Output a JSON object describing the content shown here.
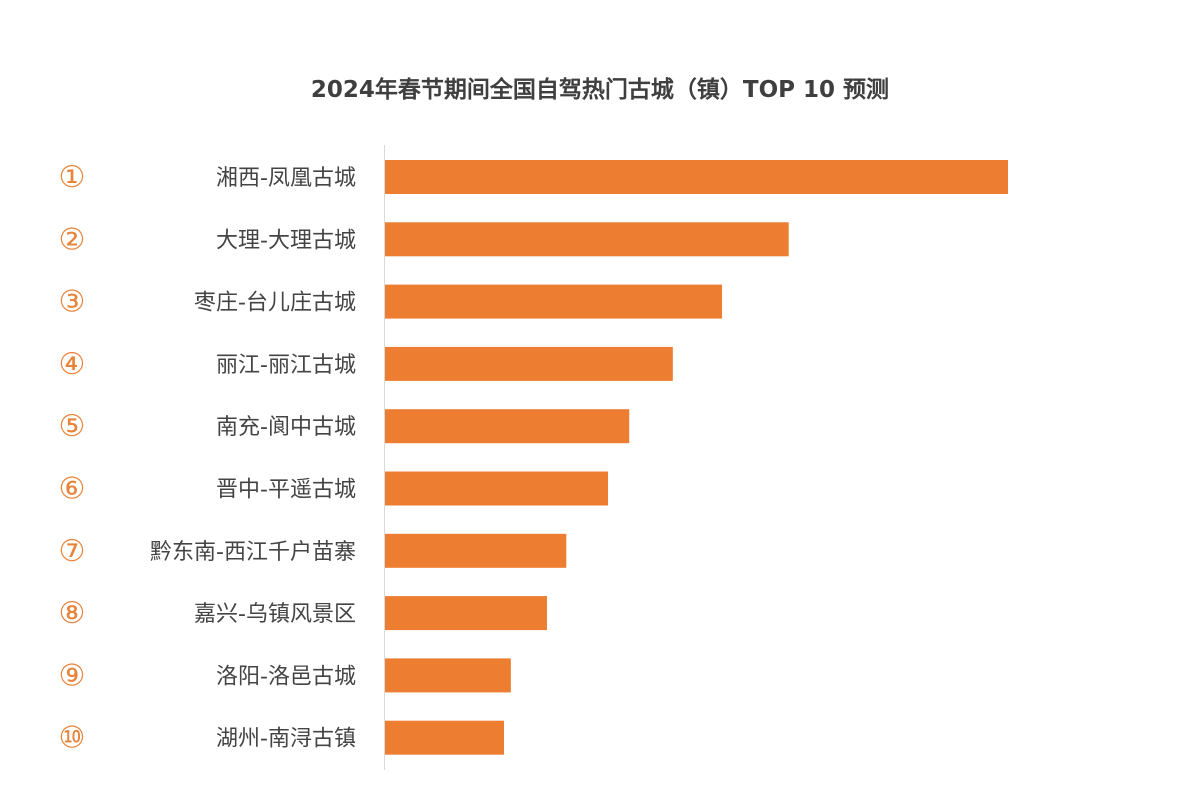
{
  "chart_data": {
    "type": "bar",
    "orientation": "horizontal",
    "title": "2024年春节期间全国自驾热门古城（镇）TOP 10 预测",
    "ranks": [
      "①",
      "②",
      "③",
      "④",
      "⑤",
      "⑥",
      "⑦",
      "⑧",
      "⑨",
      "⑩"
    ],
    "categories": [
      "湘西-凤凰古城",
      "大理-大理古城",
      "枣庄-台儿庄古城",
      "丽江-丽江古城",
      "南充-阆中古城",
      "晋中-平遥古城",
      "黔东南-西江千户苗寨",
      "嘉兴-乌镇风景区",
      "洛阳-洛邑古城",
      "湖州-南浔古镇"
    ],
    "values": [
      100,
      64.8,
      54.1,
      46.2,
      39.2,
      35.8,
      29.1,
      26.0,
      20.2,
      19.1
    ],
    "value_note_unit": "relative (top = 100)",
    "xlim": [
      0,
      100
    ],
    "grid": false,
    "bar_color": "#ed7d31",
    "rank_color": "#e8833a"
  }
}
